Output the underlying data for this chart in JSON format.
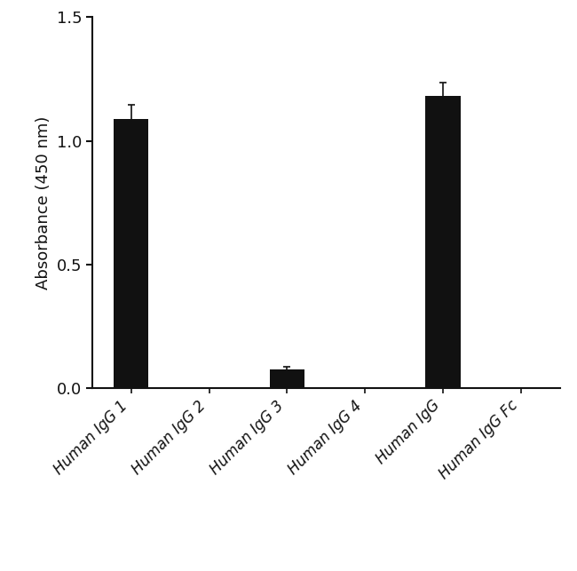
{
  "categories": [
    "Human IgG 1",
    "Human IgG 2",
    "Human IgG 3",
    "Human IgG 4",
    "Human IgG",
    "Human IgG Fc"
  ],
  "values": [
    1.09,
    0.0,
    0.075,
    0.0,
    1.18,
    0.0
  ],
  "errors": [
    0.055,
    0.0,
    0.013,
    0.0,
    0.055,
    0.0
  ],
  "bar_color": "#111111",
  "bar_width": 0.45,
  "ylabel": "Absorbance (450 nm)",
  "ylim": [
    0,
    1.5
  ],
  "yticks": [
    0.0,
    0.5,
    1.0,
    1.5
  ],
  "background_color": "#ffffff",
  "ylabel_fontsize": 13,
  "tick_fontsize": 13,
  "xtick_fontsize": 12,
  "error_capsize": 3,
  "error_linewidth": 1.2,
  "error_color": "#111111",
  "spine_linewidth": 1.5
}
